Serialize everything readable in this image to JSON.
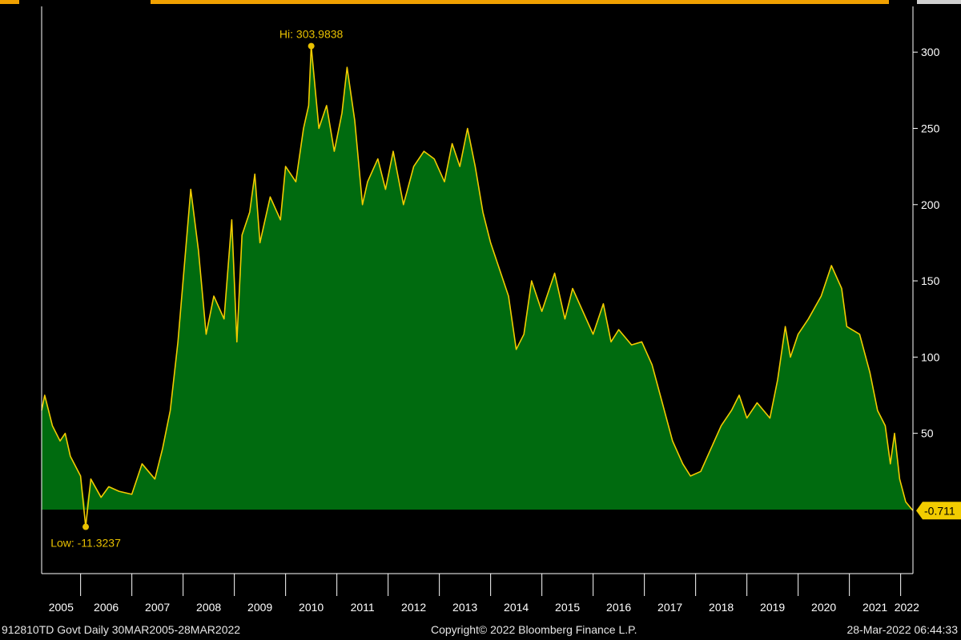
{
  "footer": {
    "left": "912810TD Govt  Daily 30MAR2005-28MAR2022",
    "center": "Copyright© 2022 Bloomberg Finance L.P.",
    "right": "28-Mar-2022 06:44:33"
  },
  "colors": {
    "background": "#000000",
    "area_fill": "#006b0f",
    "line": "#f2cc00",
    "axis": "#ffffff",
    "annotation": "#e8c000",
    "last_value_badge": "#f2cc00"
  },
  "chart_data": {
    "type": "area",
    "title": "",
    "xlabel": "",
    "ylabel": "",
    "ylim": [
      -42,
      330
    ],
    "xlim": [
      2005.24,
      2022.24
    ],
    "y_ticks": [
      50,
      100,
      150,
      200,
      250,
      300
    ],
    "x_tick_labels": [
      "2005",
      "2006",
      "2007",
      "2008",
      "2009",
      "2010",
      "2011",
      "2012",
      "2013",
      "2014",
      "2015",
      "2016",
      "2017",
      "2018",
      "2019",
      "2020",
      "2021",
      "2022"
    ],
    "grid": false,
    "y_axis_position": "right",
    "annotations": {
      "high": {
        "label": "Hi: 303.9838",
        "x": 2010.5,
        "y": 303.9838
      },
      "low": {
        "label": "Low: -11.3237",
        "x": 2006.1,
        "y": -11.3237
      },
      "last": {
        "label": "-0.711",
        "x": 2022.24,
        "y": -0.711
      }
    },
    "series": [
      {
        "values": [
          {
            "x": 2005.24,
            "y": 65
          },
          {
            "x": 2005.3,
            "y": 75
          },
          {
            "x": 2005.45,
            "y": 55
          },
          {
            "x": 2005.6,
            "y": 45
          },
          {
            "x": 2005.7,
            "y": 50
          },
          {
            "x": 2005.8,
            "y": 35
          },
          {
            "x": 2006.0,
            "y": 22
          },
          {
            "x": 2006.1,
            "y": -11.3
          },
          {
            "x": 2006.2,
            "y": 20
          },
          {
            "x": 2006.4,
            "y": 8
          },
          {
            "x": 2006.55,
            "y": 15
          },
          {
            "x": 2006.75,
            "y": 12
          },
          {
            "x": 2007.0,
            "y": 10
          },
          {
            "x": 2007.2,
            "y": 30
          },
          {
            "x": 2007.45,
            "y": 20
          },
          {
            "x": 2007.6,
            "y": 40
          },
          {
            "x": 2007.75,
            "y": 65
          },
          {
            "x": 2007.9,
            "y": 110
          },
          {
            "x": 2008.0,
            "y": 150
          },
          {
            "x": 2008.15,
            "y": 210
          },
          {
            "x": 2008.3,
            "y": 170
          },
          {
            "x": 2008.45,
            "y": 115
          },
          {
            "x": 2008.6,
            "y": 140
          },
          {
            "x": 2008.8,
            "y": 125
          },
          {
            "x": 2008.95,
            "y": 190
          },
          {
            "x": 2009.05,
            "y": 110
          },
          {
            "x": 2009.15,
            "y": 180
          },
          {
            "x": 2009.3,
            "y": 195
          },
          {
            "x": 2009.4,
            "y": 220
          },
          {
            "x": 2009.5,
            "y": 175
          },
          {
            "x": 2009.7,
            "y": 205
          },
          {
            "x": 2009.9,
            "y": 190
          },
          {
            "x": 2010.0,
            "y": 225
          },
          {
            "x": 2010.2,
            "y": 215
          },
          {
            "x": 2010.35,
            "y": 250
          },
          {
            "x": 2010.45,
            "y": 265
          },
          {
            "x": 2010.5,
            "y": 303.98
          },
          {
            "x": 2010.65,
            "y": 250
          },
          {
            "x": 2010.8,
            "y": 265
          },
          {
            "x": 2010.95,
            "y": 235
          },
          {
            "x": 2011.1,
            "y": 260
          },
          {
            "x": 2011.2,
            "y": 290
          },
          {
            "x": 2011.35,
            "y": 255
          },
          {
            "x": 2011.5,
            "y": 200
          },
          {
            "x": 2011.6,
            "y": 215
          },
          {
            "x": 2011.8,
            "y": 230
          },
          {
            "x": 2011.95,
            "y": 210
          },
          {
            "x": 2012.1,
            "y": 235
          },
          {
            "x": 2012.3,
            "y": 200
          },
          {
            "x": 2012.5,
            "y": 225
          },
          {
            "x": 2012.7,
            "y": 235
          },
          {
            "x": 2012.9,
            "y": 230
          },
          {
            "x": 2013.1,
            "y": 215
          },
          {
            "x": 2013.25,
            "y": 240
          },
          {
            "x": 2013.4,
            "y": 225
          },
          {
            "x": 2013.55,
            "y": 250
          },
          {
            "x": 2013.7,
            "y": 225
          },
          {
            "x": 2013.85,
            "y": 195
          },
          {
            "x": 2014.0,
            "y": 175
          },
          {
            "x": 2014.15,
            "y": 160
          },
          {
            "x": 2014.35,
            "y": 140
          },
          {
            "x": 2014.5,
            "y": 105
          },
          {
            "x": 2014.65,
            "y": 115
          },
          {
            "x": 2014.8,
            "y": 150
          },
          {
            "x": 2015.0,
            "y": 130
          },
          {
            "x": 2015.25,
            "y": 155
          },
          {
            "x": 2015.45,
            "y": 125
          },
          {
            "x": 2015.6,
            "y": 145
          },
          {
            "x": 2015.8,
            "y": 130
          },
          {
            "x": 2016.0,
            "y": 115
          },
          {
            "x": 2016.2,
            "y": 135
          },
          {
            "x": 2016.35,
            "y": 110
          },
          {
            "x": 2016.5,
            "y": 118
          },
          {
            "x": 2016.75,
            "y": 108
          },
          {
            "x": 2016.95,
            "y": 110
          },
          {
            "x": 2017.15,
            "y": 95
          },
          {
            "x": 2017.35,
            "y": 70
          },
          {
            "x": 2017.55,
            "y": 45
          },
          {
            "x": 2017.75,
            "y": 30
          },
          {
            "x": 2017.9,
            "y": 22
          },
          {
            "x": 2018.1,
            "y": 25
          },
          {
            "x": 2018.3,
            "y": 40
          },
          {
            "x": 2018.5,
            "y": 55
          },
          {
            "x": 2018.7,
            "y": 65
          },
          {
            "x": 2018.85,
            "y": 75
          },
          {
            "x": 2019.0,
            "y": 60
          },
          {
            "x": 2019.2,
            "y": 70
          },
          {
            "x": 2019.45,
            "y": 60
          },
          {
            "x": 2019.6,
            "y": 85
          },
          {
            "x": 2019.75,
            "y": 120
          },
          {
            "x": 2019.85,
            "y": 100
          },
          {
            "x": 2020.0,
            "y": 115
          },
          {
            "x": 2020.2,
            "y": 125
          },
          {
            "x": 2020.45,
            "y": 140
          },
          {
            "x": 2020.65,
            "y": 160
          },
          {
            "x": 2020.85,
            "y": 145
          },
          {
            "x": 2020.95,
            "y": 120
          },
          {
            "x": 2021.2,
            "y": 115
          },
          {
            "x": 2021.4,
            "y": 90
          },
          {
            "x": 2021.55,
            "y": 65
          },
          {
            "x": 2021.7,
            "y": 55
          },
          {
            "x": 2021.8,
            "y": 30
          },
          {
            "x": 2021.88,
            "y": 50
          },
          {
            "x": 2021.98,
            "y": 20
          },
          {
            "x": 2022.1,
            "y": 5
          },
          {
            "x": 2022.24,
            "y": -0.711
          }
        ]
      }
    ]
  }
}
